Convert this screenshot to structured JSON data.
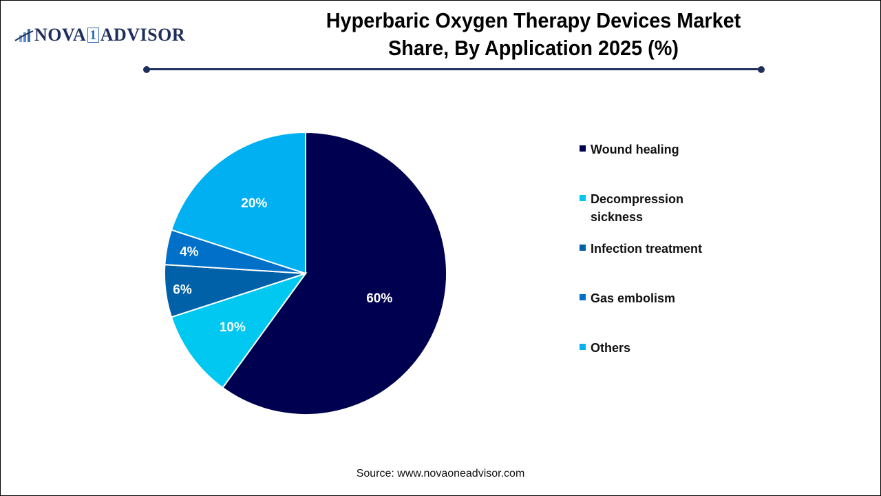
{
  "logo": {
    "prefix": "NOVA",
    "one": "1",
    "suffix": "ADVISOR"
  },
  "title": {
    "line1": "Hyperbaric Oxygen Therapy Devices Market",
    "line2": "Share, By Application 2025 (%)"
  },
  "source": "Source: www.novaoneadvisor.com",
  "legend": [
    {
      "label": "Wound healing",
      "color": "#000050"
    },
    {
      "label": "Decompression sickness",
      "color": "#00c8f0"
    },
    {
      "label": "Infection treatment",
      "color": "#0060a8"
    },
    {
      "label": "Gas embolism",
      "color": "#0070c8"
    },
    {
      "label": "Others",
      "color": "#00b0f0"
    }
  ],
  "chart_data": {
    "type": "pie",
    "title": "Hyperbaric Oxygen Therapy Devices Market Share, By Application 2025 (%)",
    "categories": [
      "Wound healing",
      "Decompression sickness",
      "Infection treatment",
      "Gas embolism",
      "Others"
    ],
    "values": [
      60,
      10,
      6,
      4,
      20
    ],
    "labels": [
      "60%",
      "10%",
      "6%",
      "4%",
      "20%"
    ],
    "colors": [
      "#000050",
      "#00c8f0",
      "#0060a8",
      "#0070c8",
      "#00b0f0"
    ],
    "start_angle": "12 o'clock",
    "direction": "clockwise",
    "legend_position": "right"
  }
}
